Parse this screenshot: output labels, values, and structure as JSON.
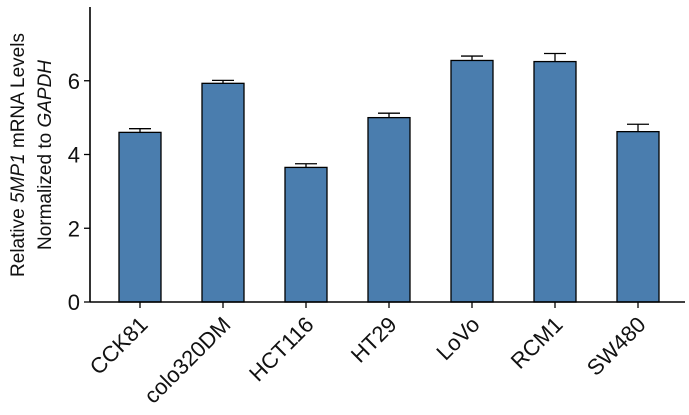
{
  "chart_data": {
    "type": "bar",
    "categories": [
      "CCK81",
      "colo320DM",
      "HCT116",
      "HT29",
      "LoVo",
      "RCM1",
      "SW480"
    ],
    "values": [
      4.6,
      5.93,
      3.65,
      5.0,
      6.55,
      6.52,
      4.62
    ],
    "errors": [
      0.1,
      0.08,
      0.1,
      0.12,
      0.12,
      0.22,
      0.2
    ],
    "ylabel": {
      "line1_pre": "Relative ",
      "line1_gene": "5MP1",
      "line1_post": " mRNA Levels",
      "line2_pre": "Normalized to ",
      "line2_gene": "GAPDH"
    },
    "ylim": [
      0,
      8
    ],
    "yticks": [
      0,
      2,
      4,
      6
    ],
    "bar_color": "#4A7DAE",
    "edge_color": "#000000",
    "grid": false,
    "legend": "none"
  }
}
